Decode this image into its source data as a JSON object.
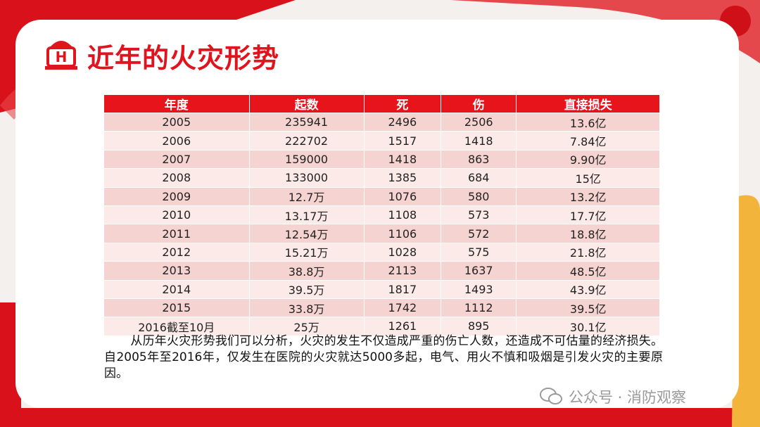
{
  "header": {
    "title": "近年的火灾形势"
  },
  "table": {
    "columns": [
      "年度",
      "起数",
      "死",
      "伤",
      "直接损失"
    ],
    "rows": [
      [
        "2005",
        "235941",
        "2496",
        "2506",
        "13.6亿"
      ],
      [
        "2006",
        "222702",
        "1517",
        "1418",
        "7.84亿"
      ],
      [
        "2007",
        "159000",
        "1418",
        "863",
        "9.90亿"
      ],
      [
        "2008",
        "133000",
        "1385",
        "684",
        "15亿"
      ],
      [
        "2009",
        "12.7万",
        "1076",
        "580",
        "13.2亿"
      ],
      [
        "2010",
        "13.17万",
        "1108",
        "573",
        "17.7亿"
      ],
      [
        "2011",
        "12.54万",
        "1106",
        "572",
        "18.8亿"
      ],
      [
        "2012",
        "15.21万",
        "1028",
        "575",
        "21.8亿"
      ],
      [
        "2013",
        "38.8万",
        "2113",
        "1637",
        "48.5亿"
      ],
      [
        "2014",
        "39.5万",
        "1817",
        "1493",
        "43.9亿"
      ],
      [
        "2015",
        "33.8万",
        "1742",
        "1112",
        "39.5亿"
      ],
      [
        "2016截至10月",
        "25万",
        "1261",
        "895",
        "30.1亿"
      ]
    ]
  },
  "paragraph": "从历年火灾形势我们可以分析，火灾的发生不仅造成严重的伤亡人数，还造成不可估量的经济损失。自2005年至2016年，仅发生在医院的火灾就达5000多起，电气、用火不慎和吸烟是引发火灾的主要原因。",
  "watermark": "公众号 · 消防观察"
}
